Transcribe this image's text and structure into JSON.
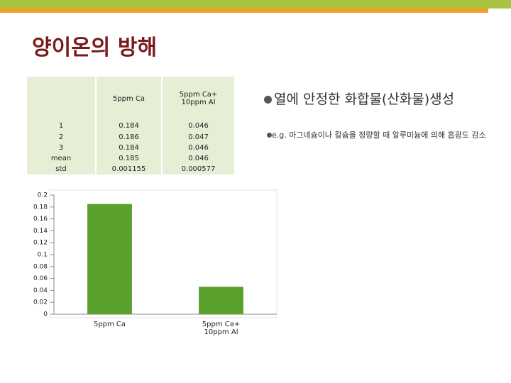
{
  "title": "양이온의 방해",
  "table": {
    "header": [
      "5ppm Ca",
      "5ppm Ca+\n10ppm Al"
    ],
    "rows": [
      [
        "1",
        "0.184",
        "0.046"
      ],
      [
        "2",
        "0.186",
        "0.047"
      ],
      [
        "3",
        "0.184",
        "0.046"
      ],
      [
        "mean",
        "0.185",
        "0.046"
      ],
      [
        "std",
        "0.001155",
        "0.000577"
      ]
    ]
  },
  "bullets": [
    {
      "text": "열에 안정한 화합물(산화물)생성",
      "sub": "e.g. 마그네슘이나 칼슘을 정량할 때 알루미늄에 의해 흡광도 감소"
    }
  ],
  "chart_data": {
    "type": "bar",
    "categories": [
      "5ppm Ca",
      "5ppm Ca+\n10ppm Al"
    ],
    "values": [
      0.185,
      0.046
    ],
    "color": "#5aa02c",
    "ylim": [
      0,
      0.2
    ],
    "yticks": [
      0,
      0.02,
      0.04,
      0.06,
      0.08,
      0.1,
      0.12,
      0.14,
      0.16,
      0.18,
      0.2
    ],
    "grid": false
  }
}
